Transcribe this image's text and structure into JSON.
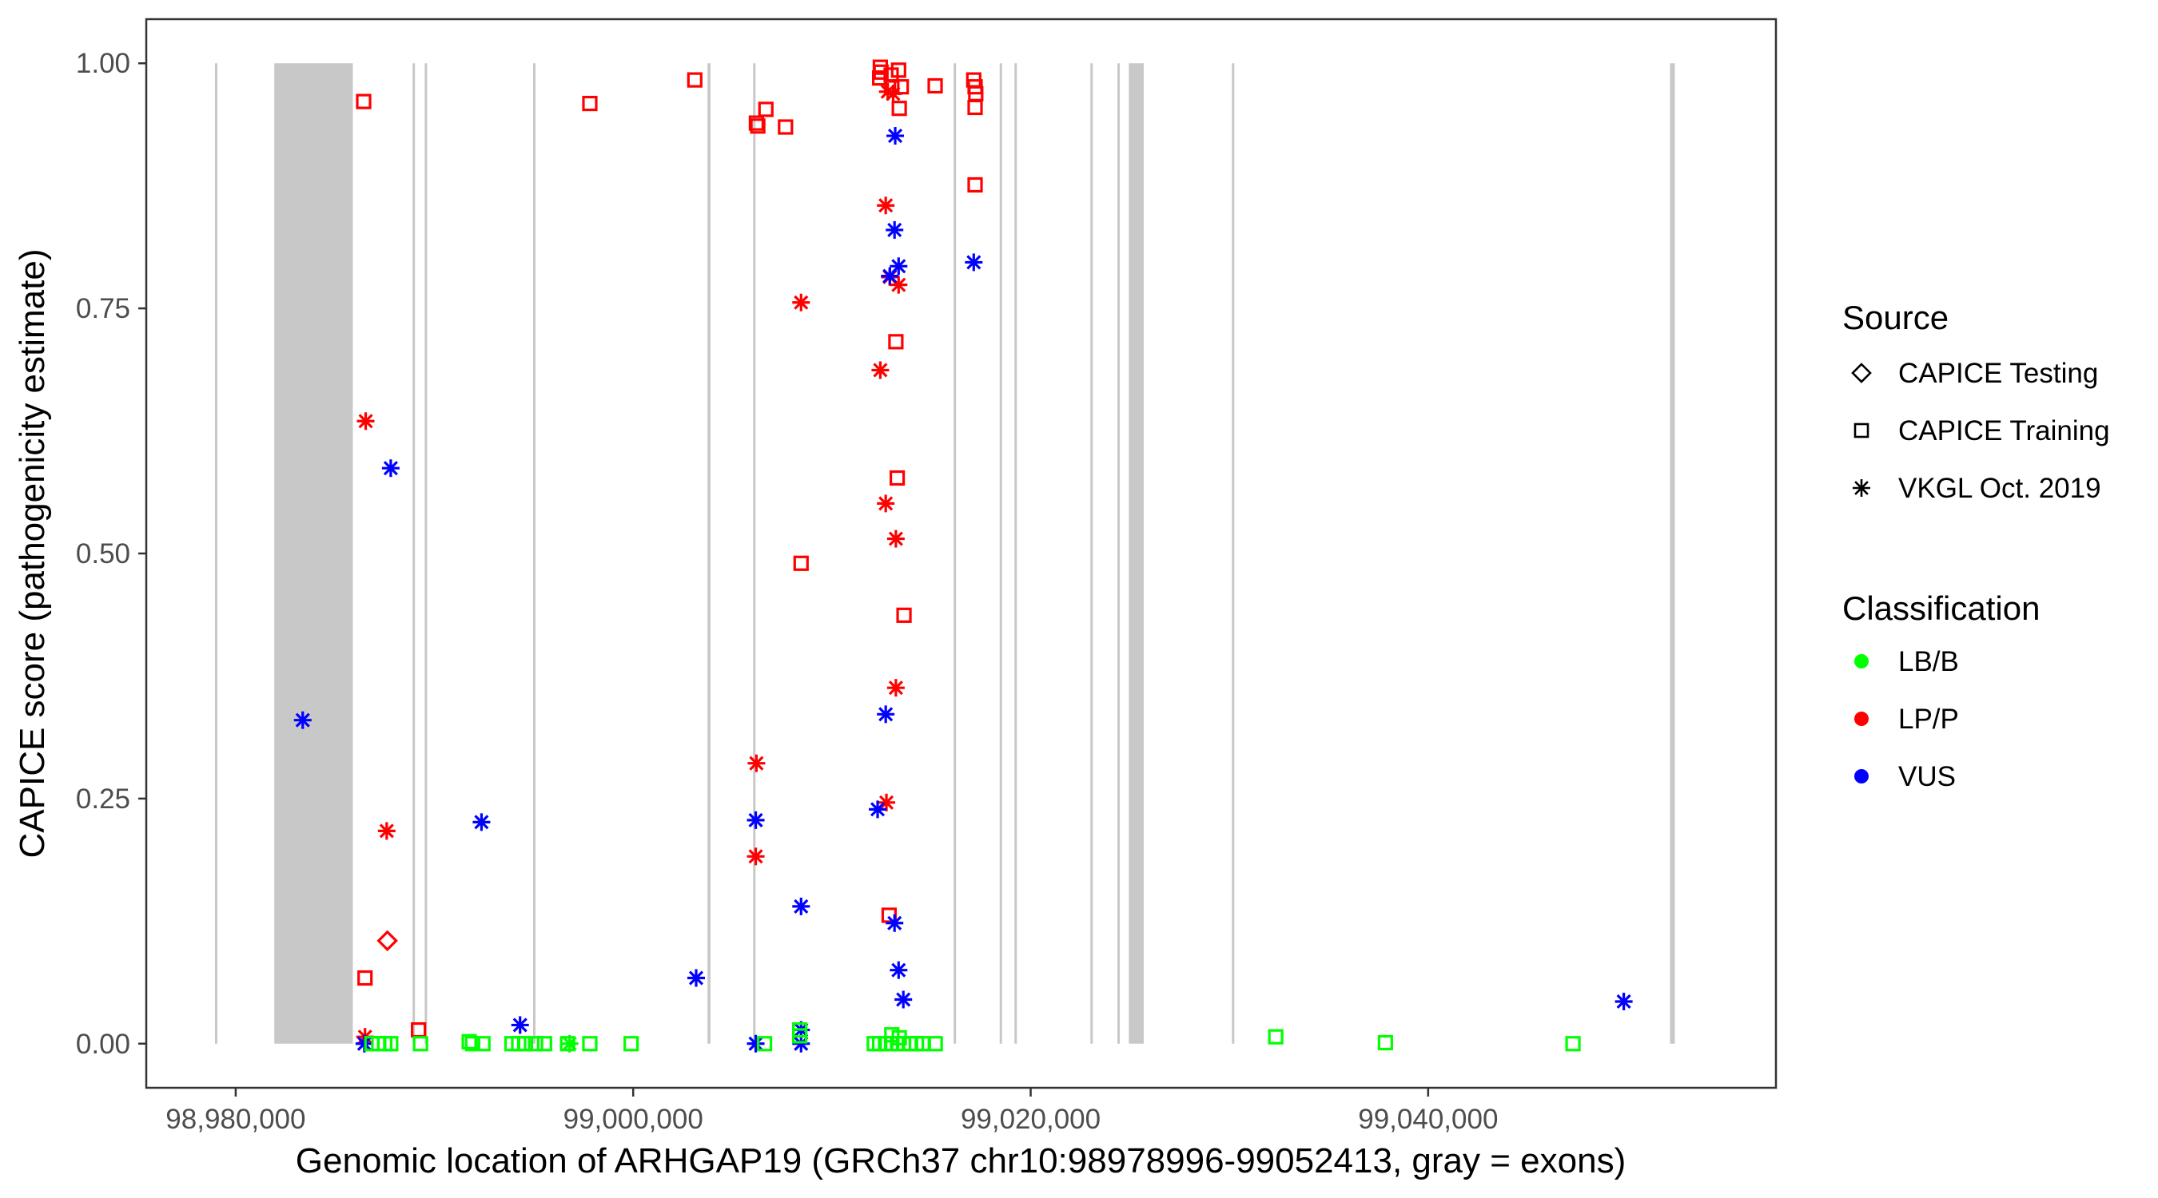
{
  "chart_data": {
    "type": "scatter",
    "title": "",
    "xlabel": "Genomic location of ARHGAP19 (GRCh37 chr10:98978996-99052413, gray = exons)",
    "ylabel": "CAPICE score (pathogenicity estimate)",
    "xlim": [
      98975500,
      99057500
    ],
    "ylim": [
      -0.045,
      1.045
    ],
    "x_ticks": [
      98980000,
      99000000,
      99020000,
      99040000
    ],
    "x_tick_labels": [
      "98,980,000",
      "99,000,000",
      "99,020,000",
      "99,040,000"
    ],
    "y_ticks": [
      0,
      0.25,
      0.5,
      0.75,
      1.0
    ],
    "y_tick_labels": [
      "0.00",
      "0.25",
      "0.50",
      "0.75",
      "1.00"
    ],
    "grid": false,
    "exon_color": "#c8c8c8",
    "exons": [
      [
        98978996,
        98979040
      ],
      [
        98981942,
        98985894
      ],
      [
        98988930,
        98988990
      ],
      [
        98989540,
        98989600
      ],
      [
        98995000,
        98995050
      ],
      [
        99003740,
        99003890
      ],
      [
        99006070,
        99006120
      ],
      [
        99016160,
        99016210
      ],
      [
        99018470,
        99018530
      ],
      [
        99019190,
        99019300
      ],
      [
        99023030,
        99023100
      ],
      [
        99024400,
        99024450
      ],
      [
        99024939,
        99025688
      ],
      [
        99030160,
        99030210
      ],
      [
        99052170,
        99052413
      ]
    ],
    "legend": {
      "placement": "right",
      "source": {
        "title": "Source",
        "items": [
          {
            "label": "CAPICE Testing",
            "shape": "diamond"
          },
          {
            "label": "CAPICE Training",
            "shape": "square"
          },
          {
            "label": "VKGL Oct. 2019",
            "shape": "asterisk"
          }
        ]
      },
      "classification": {
        "title": "Classification",
        "items": [
          {
            "label": "LB/B",
            "color": "#00ff00"
          },
          {
            "label": "LP/P",
            "color": "#ff0000"
          },
          {
            "label": "VUS",
            "color": "#0000ff"
          }
        ]
      }
    },
    "points": [
      [
        98986439,
        0.961,
        "CAPICE Training",
        "LP/P"
      ],
      [
        98997819,
        0.959,
        "CAPICE Training",
        "LP/P"
      ],
      [
        99003100,
        0.983,
        "CAPICE Training",
        "LP/P"
      ],
      [
        99006200,
        0.939,
        "CAPICE Training",
        "LP/P"
      ],
      [
        99006270,
        0.936,
        "CAPICE Training",
        "LP/P"
      ],
      [
        99006677,
        0.953,
        "CAPICE Training",
        "LP/P"
      ],
      [
        99007665,
        0.935,
        "CAPICE Training",
        "LP/P"
      ],
      [
        99012435,
        0.996,
        "CAPICE Training",
        "LP/P"
      ],
      [
        99012469,
        0.991,
        "CAPICE Training",
        "LP/P"
      ],
      [
        99012401,
        0.985,
        "CAPICE Training",
        "LP/P"
      ],
      [
        99012980,
        0.988,
        "CAPICE Training",
        "LP/P"
      ],
      [
        99013355,
        0.993,
        "CAPICE Training",
        "LP/P"
      ],
      [
        99013014,
        0.976,
        "CAPICE Training",
        "LP/P"
      ],
      [
        99013491,
        0.976,
        "CAPICE Training",
        "LP/P"
      ],
      [
        99013389,
        0.954,
        "CAPICE Training",
        "LP/P"
      ],
      [
        99015194,
        0.977,
        "CAPICE Training",
        "LP/P"
      ],
      [
        99017136,
        0.983,
        "CAPICE Training",
        "LP/P"
      ],
      [
        99017204,
        0.976,
        "CAPICE Training",
        "LP/P"
      ],
      [
        99017238,
        0.969,
        "CAPICE Training",
        "LP/P"
      ],
      [
        99017204,
        0.955,
        "CAPICE Training",
        "LP/P"
      ],
      [
        99017204,
        0.876,
        "CAPICE Training",
        "LP/P"
      ],
      [
        99013218,
        0.716,
        "CAPICE Training",
        "LP/P"
      ],
      [
        99013286,
        0.577,
        "CAPICE Training",
        "LP/P"
      ],
      [
        99008448,
        0.49,
        "CAPICE Training",
        "LP/P"
      ],
      [
        99013627,
        0.437,
        "CAPICE Training",
        "LP/P"
      ],
      [
        99012878,
        0.131,
        "CAPICE Training",
        "LP/P"
      ],
      [
        98986507,
        0.067,
        "CAPICE Training",
        "LP/P"
      ],
      [
        98989199,
        0.014,
        "CAPICE Training",
        "LP/P"
      ],
      [
        98987632,
        0.105,
        "CAPICE Testing",
        "LP/P"
      ],
      [
        98986541,
        0.635,
        "VKGL Oct. 2019",
        "LP/P"
      ],
      [
        98987598,
        0.217,
        "VKGL Oct. 2019",
        "LP/P"
      ],
      [
        98986507,
        0.007,
        "VKGL Oct. 2019",
        "LP/P"
      ],
      [
        99008448,
        0.756,
        "VKGL Oct. 2019",
        "LP/P"
      ],
      [
        99006200,
        0.286,
        "VKGL Oct. 2019",
        "LP/P"
      ],
      [
        99006166,
        0.191,
        "VKGL Oct. 2019",
        "LP/P"
      ],
      [
        99012707,
        0.855,
        "VKGL Oct. 2019",
        "LP/P"
      ],
      [
        99012435,
        0.687,
        "VKGL Oct. 2019",
        "LP/P"
      ],
      [
        99012707,
        0.551,
        "VKGL Oct. 2019",
        "LP/P"
      ],
      [
        99013218,
        0.515,
        "VKGL Oct. 2019",
        "LP/P"
      ],
      [
        99013218,
        0.363,
        "VKGL Oct. 2019",
        "LP/P"
      ],
      [
        99012742,
        0.246,
        "VKGL Oct. 2019",
        "LP/P"
      ],
      [
        99012912,
        0.782,
        "VKGL Oct. 2019",
        "LP/P"
      ],
      [
        99013355,
        0.774,
        "VKGL Oct. 2019",
        "LP/P"
      ],
      [
        99012810,
        0.971,
        "VKGL Oct. 2019",
        "LP/P"
      ],
      [
        99013082,
        0.969,
        "VKGL Oct. 2019",
        "LP/P"
      ],
      [
        98983373,
        0.33,
        "VKGL Oct. 2019",
        "VUS"
      ],
      [
        98987802,
        0.587,
        "VKGL Oct. 2019",
        "VUS"
      ],
      [
        98992367,
        0.226,
        "VKGL Oct. 2019",
        "VUS"
      ],
      [
        98994309,
        0.019,
        "VKGL Oct. 2019",
        "VUS"
      ],
      [
        98986473,
        0.0,
        "VKGL Oct. 2019",
        "VUS"
      ],
      [
        99003168,
        0.067,
        "VKGL Oct. 2019",
        "VUS"
      ],
      [
        99006166,
        0.228,
        "VKGL Oct. 2019",
        "VUS"
      ],
      [
        99006166,
        0.0,
        "VKGL Oct. 2019",
        "VUS"
      ],
      [
        99008448,
        0.14,
        "VKGL Oct. 2019",
        "VUS"
      ],
      [
        99008448,
        0.014,
        "VKGL Oct. 2019",
        "VUS"
      ],
      [
        99008448,
        0.0,
        "VKGL Oct. 2019",
        "VUS"
      ],
      [
        99013184,
        0.926,
        "VKGL Oct. 2019",
        "VUS"
      ],
      [
        99013150,
        0.83,
        "VKGL Oct. 2019",
        "VUS"
      ],
      [
        99013355,
        0.793,
        "VKGL Oct. 2019",
        "VUS"
      ],
      [
        99012912,
        0.783,
        "VKGL Oct. 2019",
        "VUS"
      ],
      [
        99017136,
        0.797,
        "VKGL Oct. 2019",
        "VUS"
      ],
      [
        99012707,
        0.336,
        "VKGL Oct. 2019",
        "VUS"
      ],
      [
        99012299,
        0.239,
        "VKGL Oct. 2019",
        "VUS"
      ],
      [
        99013150,
        0.123,
        "VKGL Oct. 2019",
        "VUS"
      ],
      [
        99013355,
        0.075,
        "VKGL Oct. 2019",
        "VUS"
      ],
      [
        99013593,
        0.045,
        "VKGL Oct. 2019",
        "VUS"
      ],
      [
        99049843,
        0.043,
        "VKGL Oct. 2019",
        "VUS"
      ],
      [
        98986850,
        0.0,
        "CAPICE Training",
        "LB/B"
      ],
      [
        98987200,
        0.0,
        "CAPICE Training",
        "LB/B"
      ],
      [
        98987500,
        0.0,
        "CAPICE Training",
        "LB/B"
      ],
      [
        98987800,
        0.0,
        "CAPICE Training",
        "LB/B"
      ],
      [
        98989300,
        0.0,
        "CAPICE Training",
        "LB/B"
      ],
      [
        98991750,
        0.002,
        "CAPICE Training",
        "LB/B"
      ],
      [
        98991920,
        0.0,
        "CAPICE Training",
        "LB/B"
      ],
      [
        98992440,
        0.0,
        "CAPICE Training",
        "LB/B"
      ],
      [
        98993900,
        0.0,
        "CAPICE Training",
        "LB/B"
      ],
      [
        98994240,
        0.0,
        "CAPICE Training",
        "LB/B"
      ],
      [
        98994580,
        0.0,
        "CAPICE Training",
        "LB/B"
      ],
      [
        98995090,
        0.0,
        "CAPICE Training",
        "LB/B"
      ],
      [
        98995540,
        0.0,
        "CAPICE Training",
        "LB/B"
      ],
      [
        98996700,
        0.0,
        "CAPICE Training",
        "LB/B"
      ],
      [
        98996800,
        0.0,
        "VKGL Oct. 2019",
        "LB/B"
      ],
      [
        98997819,
        0.0,
        "CAPICE Training",
        "LB/B"
      ],
      [
        98999897,
        0.0,
        "CAPICE Training",
        "LB/B"
      ],
      [
        99006609,
        0.0,
        "CAPICE Training",
        "LB/B"
      ],
      [
        99008380,
        0.014,
        "CAPICE Training",
        "LB/B"
      ],
      [
        99008380,
        0.008,
        "CAPICE Training",
        "LB/B"
      ],
      [
        99012130,
        0.0,
        "CAPICE Training",
        "LB/B"
      ],
      [
        99012400,
        0.0,
        "CAPICE Training",
        "LB/B"
      ],
      [
        99012700,
        0.0,
        "CAPICE Training",
        "LB/B"
      ],
      [
        99013000,
        0.0,
        "CAPICE Training",
        "LB/B"
      ],
      [
        99013300,
        0.0,
        "CAPICE Training",
        "LB/B"
      ],
      [
        99013600,
        0.0,
        "CAPICE Training",
        "LB/B"
      ],
      [
        99013900,
        0.0,
        "CAPICE Training",
        "LB/B"
      ],
      [
        99014250,
        0.0,
        "CAPICE Training",
        "LB/B"
      ],
      [
        99014600,
        0.0,
        "CAPICE Training",
        "LB/B"
      ],
      [
        99015200,
        0.0,
        "CAPICE Training",
        "LB/B"
      ],
      [
        99013014,
        0.009,
        "CAPICE Training",
        "LB/B"
      ],
      [
        99013389,
        0.006,
        "CAPICE Training",
        "LB/B"
      ],
      [
        99032331,
        0.007,
        "CAPICE Training",
        "LB/B"
      ],
      [
        99037850,
        0.001,
        "CAPICE Training",
        "LB/B"
      ],
      [
        99047288,
        0.0,
        "CAPICE Training",
        "LB/B"
      ]
    ]
  }
}
